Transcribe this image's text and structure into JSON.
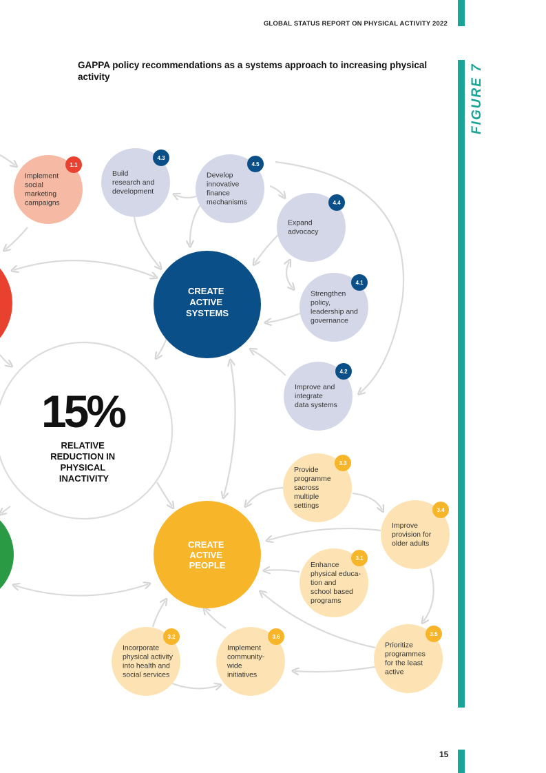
{
  "header": {
    "report_title": "GLOBAL STATUS REPORT ON PHYSICAL ACTIVITY 2022"
  },
  "figure_label": "FIGURE 7",
  "title": "GAPPA policy recommendations as a systems approach to increasing physical activity",
  "page_number": "15",
  "colors": {
    "teal": "#1aa596",
    "systems": "#0a4f88",
    "systems_light": "#d4d7e8",
    "people": "#f7b52a",
    "people_light": "#fde3b3",
    "society": "#e8412f",
    "society_light": "#f6b9a3",
    "environments": "#2a9a44",
    "arrow": "#d9d9d9"
  },
  "center": {
    "value": "15%",
    "caption": [
      "RELATIVE",
      "REDUCTION IN",
      "PHYSICAL",
      "INACTIVITY"
    ]
  },
  "hubs": [
    {
      "id": "systems",
      "lines": [
        "CREATE",
        "ACTIVE",
        "SYSTEMS"
      ]
    },
    {
      "id": "people",
      "lines": [
        "CREATE",
        "ACTIVE",
        "PEOPLE"
      ]
    }
  ],
  "nodes": [
    {
      "badge": "1.1",
      "group": "society",
      "lines": [
        "Implement",
        "social",
        "marketing",
        "campaigns"
      ]
    },
    {
      "badge": "4.3",
      "group": "systems",
      "lines": [
        "Build",
        "research and",
        "development"
      ]
    },
    {
      "badge": "4.5",
      "group": "systems",
      "lines": [
        "Develop",
        "innovative",
        "finance",
        "mechanisms"
      ]
    },
    {
      "badge": "4.4",
      "group": "systems",
      "lines": [
        "Expand",
        "advocacy"
      ]
    },
    {
      "badge": "4.1",
      "group": "systems",
      "lines": [
        "Strengthen",
        "policy,",
        "leadership and",
        "governance"
      ]
    },
    {
      "badge": "4.2",
      "group": "systems",
      "lines": [
        "Improve and",
        "integrate",
        "data systems"
      ]
    },
    {
      "badge": "3.3",
      "group": "people",
      "lines": [
        "Provide",
        "programme",
        "sacross",
        "multiple",
        "settings"
      ]
    },
    {
      "badge": "3.4",
      "group": "people",
      "lines": [
        "Improve",
        "provision for",
        "older adults"
      ]
    },
    {
      "badge": "3.1",
      "group": "people",
      "lines": [
        "Enhance",
        "physical educa-",
        "tion and",
        "school based",
        "programs"
      ]
    },
    {
      "badge": "3.5",
      "group": "people",
      "lines": [
        "Prioritize",
        "programmes",
        "for the least",
        "active"
      ]
    },
    {
      "badge": "3.6",
      "group": "people",
      "lines": [
        "Implement",
        "community-",
        "wide",
        "initiatives"
      ]
    },
    {
      "badge": "3.2",
      "group": "people",
      "lines": [
        "Incorporate",
        "physical activity",
        "into health and",
        "social services"
      ]
    }
  ]
}
